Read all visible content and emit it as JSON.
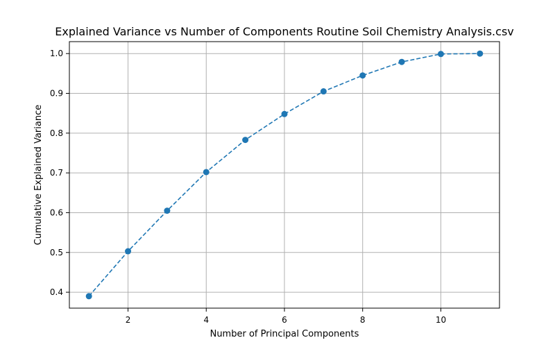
{
  "chart_data": {
    "type": "line",
    "title": "Explained Variance vs Number of Components Routine Soil Chemistry Analysis.csv",
    "xlabel": "Number of Principal Components",
    "ylabel": "Cumulative Explained Variance",
    "x": [
      1,
      2,
      3,
      4,
      5,
      6,
      7,
      8,
      9,
      10,
      11
    ],
    "series": [
      {
        "values": [
          0.39,
          0.503,
          0.605,
          0.702,
          0.783,
          0.848,
          0.905,
          0.945,
          0.979,
          0.999,
          1.0
        ],
        "color": "#1f77b4",
        "line_style": "dashed",
        "marker": "circle"
      }
    ],
    "xlim": [
      0.5,
      11.5
    ],
    "ylim": [
      0.36,
      1.03
    ],
    "xticks": [
      "2",
      "4",
      "6",
      "8",
      "10"
    ],
    "yticks": [
      "0.4",
      "0.5",
      "0.6",
      "0.7",
      "0.8",
      "0.9",
      "1.0"
    ],
    "grid": true
  }
}
